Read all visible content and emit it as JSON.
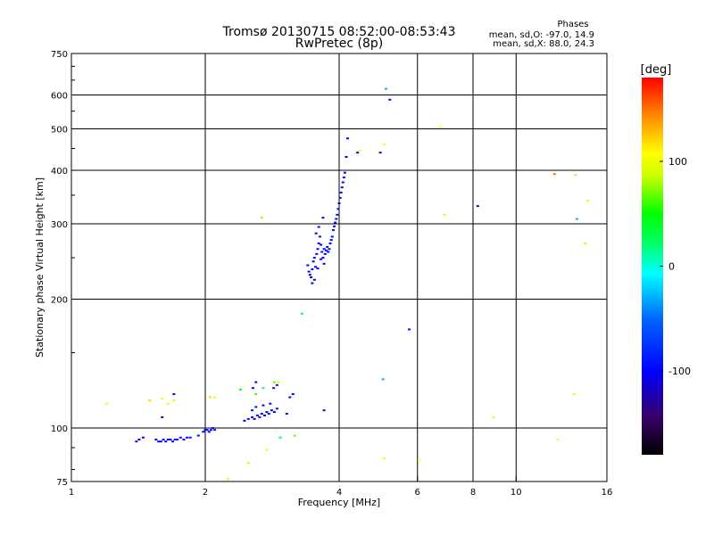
{
  "chart_data": {
    "type": "scatter",
    "title": "Tromsø 20130715 08:52:00-08:53:43",
    "subtitle": "RwPretec (8p)",
    "stats": {
      "heading": "Phases",
      "line1": "mean, sd,O: -97.0, 14.9",
      "line2": "mean, sd,X:  88.0, 24.3"
    },
    "xlabel": "Frequency [MHz]",
    "ylabel": "Stationary phase Virtual Height [km]",
    "xscale": "log2",
    "yscale": "log",
    "xlim": [
      1,
      16
    ],
    "ylim": [
      75,
      750
    ],
    "x_ticks": [
      {
        "value": 1,
        "label": "1"
      },
      {
        "value": 2,
        "label": "2"
      },
      {
        "value": 4,
        "label": "4"
      },
      {
        "value": 6,
        "label": "6"
      },
      {
        "value": 8,
        "label": "8"
      },
      {
        "value": 10,
        "label": "10"
      },
      {
        "value": 16,
        "label": "16"
      }
    ],
    "y_ticks": [
      {
        "value": 75,
        "label": "75"
      },
      {
        "value": 100,
        "label": "100"
      },
      {
        "value": 200,
        "label": "200"
      },
      {
        "value": 300,
        "label": "300"
      },
      {
        "value": 400,
        "label": "400"
      },
      {
        "value": 500,
        "label": "500"
      },
      {
        "value": 600,
        "label": "600"
      },
      {
        "value": 750,
        "label": "750"
      }
    ],
    "grid": true,
    "colorbar": {
      "label": "[deg]",
      "min": -180,
      "max": 180,
      "ticks": [
        {
          "value": 100,
          "label": "100"
        },
        {
          "value": 0,
          "label": "0"
        },
        {
          "value": -100,
          "label": "-100"
        }
      ]
    },
    "points": [
      {
        "x": 1.42,
        "y": 94,
        "phase": -110
      },
      {
        "x": 1.45,
        "y": 95,
        "phase": -100
      },
      {
        "x": 1.4,
        "y": 93,
        "phase": -105
      },
      {
        "x": 1.55,
        "y": 94,
        "phase": -100
      },
      {
        "x": 1.57,
        "y": 93,
        "phase": -95
      },
      {
        "x": 1.59,
        "y": 93,
        "phase": -102
      },
      {
        "x": 1.61,
        "y": 94,
        "phase": -98
      },
      {
        "x": 1.63,
        "y": 93,
        "phase": -100
      },
      {
        "x": 1.65,
        "y": 94,
        "phase": -97
      },
      {
        "x": 1.67,
        "y": 94,
        "phase": -95
      },
      {
        "x": 1.69,
        "y": 93,
        "phase": -100
      },
      {
        "x": 1.71,
        "y": 94,
        "phase": -90
      },
      {
        "x": 1.73,
        "y": 94,
        "phase": -96
      },
      {
        "x": 1.76,
        "y": 95,
        "phase": -92
      },
      {
        "x": 1.79,
        "y": 94,
        "phase": -98
      },
      {
        "x": 1.82,
        "y": 95,
        "phase": -95
      },
      {
        "x": 1.85,
        "y": 95,
        "phase": -90
      },
      {
        "x": 1.93,
        "y": 96,
        "phase": -95
      },
      {
        "x": 1.98,
        "y": 98,
        "phase": -100
      },
      {
        "x": 2.0,
        "y": 99,
        "phase": -97
      },
      {
        "x": 2.02,
        "y": 99,
        "phase": -95
      },
      {
        "x": 2.04,
        "y": 98,
        "phase": -98
      },
      {
        "x": 2.06,
        "y": 99,
        "phase": -100
      },
      {
        "x": 2.08,
        "y": 100,
        "phase": -96
      },
      {
        "x": 2.1,
        "y": 99,
        "phase": -94
      },
      {
        "x": 2.45,
        "y": 104,
        "phase": -100
      },
      {
        "x": 2.5,
        "y": 105,
        "phase": -97
      },
      {
        "x": 2.55,
        "y": 106,
        "phase": -95
      },
      {
        "x": 2.58,
        "y": 105,
        "phase": -100
      },
      {
        "x": 2.62,
        "y": 107,
        "phase": -96
      },
      {
        "x": 2.65,
        "y": 106,
        "phase": -98
      },
      {
        "x": 2.68,
        "y": 108,
        "phase": -95
      },
      {
        "x": 2.72,
        "y": 107,
        "phase": -100
      },
      {
        "x": 2.75,
        "y": 109,
        "phase": -97
      },
      {
        "x": 2.78,
        "y": 108,
        "phase": -95
      },
      {
        "x": 2.82,
        "y": 110,
        "phase": -98
      },
      {
        "x": 2.86,
        "y": 109,
        "phase": -100
      },
      {
        "x": 2.9,
        "y": 111,
        "phase": -96
      },
      {
        "x": 2.55,
        "y": 110,
        "phase": -90
      },
      {
        "x": 2.6,
        "y": 112,
        "phase": -95
      },
      {
        "x": 2.7,
        "y": 113,
        "phase": -97
      },
      {
        "x": 2.8,
        "y": 114,
        "phase": -100
      },
      {
        "x": 2.56,
        "y": 124,
        "phase": -95
      },
      {
        "x": 2.6,
        "y": 128,
        "phase": -100
      },
      {
        "x": 2.85,
        "y": 124,
        "phase": -95
      },
      {
        "x": 2.9,
        "y": 126,
        "phase": -90
      },
      {
        "x": 3.1,
        "y": 118,
        "phase": -100
      },
      {
        "x": 3.15,
        "y": 120,
        "phase": -97
      },
      {
        "x": 3.05,
        "y": 108,
        "phase": -110
      },
      {
        "x": 1.7,
        "y": 120,
        "phase": -95
      },
      {
        "x": 1.6,
        "y": 106,
        "phase": -120
      },
      {
        "x": 3.4,
        "y": 240,
        "phase": -100
      },
      {
        "x": 3.42,
        "y": 232,
        "phase": -97
      },
      {
        "x": 3.44,
        "y": 228,
        "phase": -105
      },
      {
        "x": 3.46,
        "y": 225,
        "phase": -100
      },
      {
        "x": 3.48,
        "y": 235,
        "phase": -95
      },
      {
        "x": 3.5,
        "y": 245,
        "phase": -100
      },
      {
        "x": 3.52,
        "y": 250,
        "phase": -98
      },
      {
        "x": 3.54,
        "y": 238,
        "phase": -102
      },
      {
        "x": 3.56,
        "y": 255,
        "phase": -95
      },
      {
        "x": 3.58,
        "y": 262,
        "phase": -100
      },
      {
        "x": 3.6,
        "y": 270,
        "phase": -97
      },
      {
        "x": 3.62,
        "y": 280,
        "phase": -95
      },
      {
        "x": 3.64,
        "y": 268,
        "phase": -100
      },
      {
        "x": 3.66,
        "y": 258,
        "phase": -98
      },
      {
        "x": 3.68,
        "y": 250,
        "phase": -100
      },
      {
        "x": 3.7,
        "y": 262,
        "phase": -96
      },
      {
        "x": 3.72,
        "y": 255,
        "phase": -100
      },
      {
        "x": 3.74,
        "y": 260,
        "phase": -95
      },
      {
        "x": 3.76,
        "y": 265,
        "phase": -98
      },
      {
        "x": 3.78,
        "y": 258,
        "phase": -100
      },
      {
        "x": 3.8,
        "y": 262,
        "phase": -97
      },
      {
        "x": 3.82,
        "y": 270,
        "phase": -95
      },
      {
        "x": 3.84,
        "y": 275,
        "phase": -100
      },
      {
        "x": 3.86,
        "y": 280,
        "phase": -98
      },
      {
        "x": 3.88,
        "y": 290,
        "phase": -100
      },
      {
        "x": 3.9,
        "y": 296,
        "phase": -96
      },
      {
        "x": 3.92,
        "y": 302,
        "phase": -100
      },
      {
        "x": 3.94,
        "y": 308,
        "phase": -98
      },
      {
        "x": 3.96,
        "y": 315,
        "phase": -95
      },
      {
        "x": 3.98,
        "y": 325,
        "phase": -100
      },
      {
        "x": 4.0,
        "y": 335,
        "phase": -97
      },
      {
        "x": 4.02,
        "y": 345,
        "phase": -100
      },
      {
        "x": 4.04,
        "y": 355,
        "phase": -96
      },
      {
        "x": 4.06,
        "y": 365,
        "phase": -100
      },
      {
        "x": 4.08,
        "y": 375,
        "phase": -98
      },
      {
        "x": 4.1,
        "y": 385,
        "phase": -95
      },
      {
        "x": 4.12,
        "y": 395,
        "phase": -100
      },
      {
        "x": 3.55,
        "y": 285,
        "phase": -100
      },
      {
        "x": 3.6,
        "y": 295,
        "phase": -97
      },
      {
        "x": 3.48,
        "y": 218,
        "phase": -110
      },
      {
        "x": 3.52,
        "y": 222,
        "phase": -115
      },
      {
        "x": 3.58,
        "y": 236,
        "phase": -100
      },
      {
        "x": 3.64,
        "y": 248,
        "phase": -102
      },
      {
        "x": 3.7,
        "y": 242,
        "phase": -100
      },
      {
        "x": 3.68,
        "y": 310,
        "phase": -120
      },
      {
        "x": 3.7,
        "y": 110,
        "phase": -130
      },
      {
        "x": 4.18,
        "y": 475,
        "phase": -95
      },
      {
        "x": 4.15,
        "y": 430,
        "phase": -100
      },
      {
        "x": 4.4,
        "y": 440,
        "phase": -110
      },
      {
        "x": 4.95,
        "y": 440,
        "phase": -130
      },
      {
        "x": 5.1,
        "y": 620,
        "phase": -30
      },
      {
        "x": 5.2,
        "y": 585,
        "phase": -95
      },
      {
        "x": 5.05,
        "y": 460,
        "phase": 110
      },
      {
        "x": 4.45,
        "y": 445,
        "phase": 100
      },
      {
        "x": 5.02,
        "y": 130,
        "phase": -30
      },
      {
        "x": 5.75,
        "y": 170,
        "phase": -90
      },
      {
        "x": 3.3,
        "y": 185,
        "phase": 30
      },
      {
        "x": 2.68,
        "y": 310,
        "phase": 80
      },
      {
        "x": 2.95,
        "y": 95,
        "phase": 30
      },
      {
        "x": 3.18,
        "y": 96,
        "phase": 70
      },
      {
        "x": 2.75,
        "y": 89,
        "phase": 110
      },
      {
        "x": 2.5,
        "y": 83,
        "phase": 90
      },
      {
        "x": 2.6,
        "y": 120,
        "phase": 60
      },
      {
        "x": 2.7,
        "y": 124,
        "phase": 20
      },
      {
        "x": 2.86,
        "y": 128,
        "phase": 70
      },
      {
        "x": 2.92,
        "y": 128,
        "phase": 90
      },
      {
        "x": 2.4,
        "y": 123,
        "phase": 40
      },
      {
        "x": 2.05,
        "y": 118,
        "phase": 120
      },
      {
        "x": 2.1,
        "y": 118,
        "phase": 100
      },
      {
        "x": 1.7,
        "y": 116,
        "phase": 110
      },
      {
        "x": 1.6,
        "y": 117,
        "phase": 100
      },
      {
        "x": 1.5,
        "y": 116,
        "phase": 120
      },
      {
        "x": 1.65,
        "y": 114,
        "phase": 90
      },
      {
        "x": 1.2,
        "y": 114,
        "phase": 100
      },
      {
        "x": 2.25,
        "y": 76,
        "phase": 90
      },
      {
        "x": 5.05,
        "y": 85,
        "phase": 100
      },
      {
        "x": 6.05,
        "y": 84,
        "phase": 110
      },
      {
        "x": 6.75,
        "y": 505,
        "phase": 110
      },
      {
        "x": 6.9,
        "y": 315,
        "phase": 90
      },
      {
        "x": 8.2,
        "y": 330,
        "phase": -130
      },
      {
        "x": 8.9,
        "y": 106,
        "phase": 90
      },
      {
        "x": 12.2,
        "y": 392,
        "phase": 150
      },
      {
        "x": 13.6,
        "y": 390,
        "phase": 120
      },
      {
        "x": 13.7,
        "y": 308,
        "phase": -30
      },
      {
        "x": 14.5,
        "y": 340,
        "phase": 110
      },
      {
        "x": 14.3,
        "y": 270,
        "phase": 90
      },
      {
        "x": 13.5,
        "y": 120,
        "phase": 100
      },
      {
        "x": 12.4,
        "y": 94,
        "phase": 100
      }
    ]
  }
}
